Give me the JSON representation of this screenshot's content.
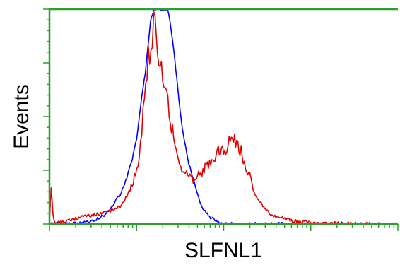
{
  "chart_data": {
    "type": "line",
    "title": "",
    "xlabel": "SLFNL1",
    "ylabel": "Events",
    "xlim": [
      0,
      4
    ],
    "ylim": [
      0,
      100
    ],
    "grid": false,
    "legend": "none",
    "axis_color": "#2e9e2e",
    "series": [
      {
        "color": "#0000ff",
        "x": [
          0.0,
          0.1,
          0.2,
          0.3,
          0.4,
          0.5,
          0.55,
          0.6,
          0.65,
          0.7,
          0.75,
          0.8,
          0.85,
          0.9,
          0.95,
          1.0,
          1.03,
          1.06,
          1.1,
          1.13,
          1.16,
          1.2,
          1.23,
          1.26,
          1.28,
          1.3,
          1.32,
          1.36,
          1.4,
          1.45,
          1.5,
          1.55,
          1.6,
          1.65,
          1.7,
          1.75,
          1.8,
          1.85,
          1.9,
          1.95,
          2.0,
          2.05,
          2.1,
          2.2,
          2.3,
          2.4,
          2.6,
          3.0,
          3.5,
          4.0
        ],
        "y": [
          0,
          0,
          0,
          0.3,
          0.8,
          1.5,
          2.5,
          3.5,
          5,
          7,
          10,
          13,
          17,
          23,
          30,
          40,
          49,
          59,
          70,
          82,
          94,
          100,
          100,
          100,
          100,
          100,
          100,
          100,
          90,
          72,
          52,
          38,
          28,
          21,
          14,
          8,
          5,
          3,
          2,
          1,
          0.5,
          0.2,
          0,
          0,
          0,
          0,
          0,
          0,
          0,
          0
        ]
      },
      {
        "color": "#e00000",
        "x": [
          0.0,
          0.02,
          0.04,
          0.06,
          0.08,
          0.1,
          0.2,
          0.3,
          0.4,
          0.5,
          0.6,
          0.7,
          0.8,
          0.85,
          0.9,
          0.95,
          1.0,
          1.03,
          1.06,
          1.09,
          1.12,
          1.15,
          1.18,
          1.21,
          1.24,
          1.27,
          1.3,
          1.33,
          1.36,
          1.4,
          1.44,
          1.48,
          1.52,
          1.56,
          1.6,
          1.65,
          1.7,
          1.75,
          1.8,
          1.85,
          1.9,
          1.95,
          2.0,
          2.05,
          2.1,
          2.15,
          2.2,
          2.25,
          2.3,
          2.35,
          2.4,
          2.45,
          2.5,
          2.55,
          2.6,
          2.65,
          2.7,
          2.75,
          2.8,
          2.85,
          2.9,
          2.95,
          3.0,
          3.1,
          3.2,
          3.3,
          3.5,
          3.7,
          4.0
        ],
        "y": [
          2,
          17,
          4,
          1,
          0.5,
          0.5,
          1.5,
          2.5,
          3.5,
          4,
          5,
          6,
          8,
          10,
          13,
          18,
          25,
          33,
          45,
          58,
          72,
          82,
          87,
          92,
          86,
          78,
          70,
          62,
          55,
          46,
          38,
          32,
          26,
          24,
          22,
          21,
          22,
          24,
          27,
          30,
          32,
          34,
          35,
          37,
          40,
          38,
          34,
          28,
          22,
          16,
          11,
          8,
          6,
          4.5,
          3.5,
          3,
          2.5,
          2,
          1.5,
          1.2,
          1,
          0.8,
          0.7,
          0.5,
          0.4,
          0.3,
          0.2,
          0.1,
          0
        ]
      }
    ]
  }
}
